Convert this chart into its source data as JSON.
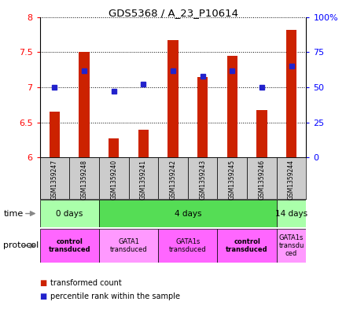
{
  "title": "GDS5368 / A_23_P10614",
  "samples": [
    "GSM1359247",
    "GSM1359248",
    "GSM1359240",
    "GSM1359241",
    "GSM1359242",
    "GSM1359243",
    "GSM1359245",
    "GSM1359246",
    "GSM1359244"
  ],
  "transformed_counts": [
    6.65,
    7.5,
    6.27,
    6.4,
    7.67,
    7.15,
    7.45,
    6.68,
    7.82
  ],
  "percentile_ranks": [
    50,
    62,
    47,
    52,
    62,
    58,
    62,
    50,
    65
  ],
  "ylim_left": [
    6.0,
    8.0
  ],
  "yticks_left": [
    6.0,
    6.5,
    7.0,
    7.5,
    8.0
  ],
  "yticks_right": [
    0,
    25,
    50,
    75,
    100
  ],
  "ytick_labels_right": [
    "0",
    "25",
    "50",
    "75",
    "100%"
  ],
  "bar_color": "#cc2200",
  "dot_color": "#2222cc",
  "bar_bottom": 6.0,
  "time_groups": [
    {
      "label": "0 days",
      "start": 0,
      "end": 2,
      "color": "#aaffaa"
    },
    {
      "label": "4 days",
      "start": 2,
      "end": 8,
      "color": "#55dd55"
    },
    {
      "label": "14 days",
      "start": 8,
      "end": 9,
      "color": "#aaffaa"
    }
  ],
  "protocol_groups": [
    {
      "label": "control\ntransduced",
      "start": 0,
      "end": 2,
      "color": "#ff66ff",
      "bold": true
    },
    {
      "label": "GATA1\ntransduced",
      "start": 2,
      "end": 4,
      "color": "#ff99ff",
      "bold": false
    },
    {
      "label": "GATA1s\ntransduced",
      "start": 4,
      "end": 6,
      "color": "#ff66ff",
      "bold": false
    },
    {
      "label": "control\ntransduced",
      "start": 6,
      "end": 8,
      "color": "#ff66ff",
      "bold": true
    },
    {
      "label": "GATA1s\ntransdu\nced",
      "start": 8,
      "end": 9,
      "color": "#ff99ff",
      "bold": false
    }
  ],
  "sample_bg_color": "#cccccc"
}
